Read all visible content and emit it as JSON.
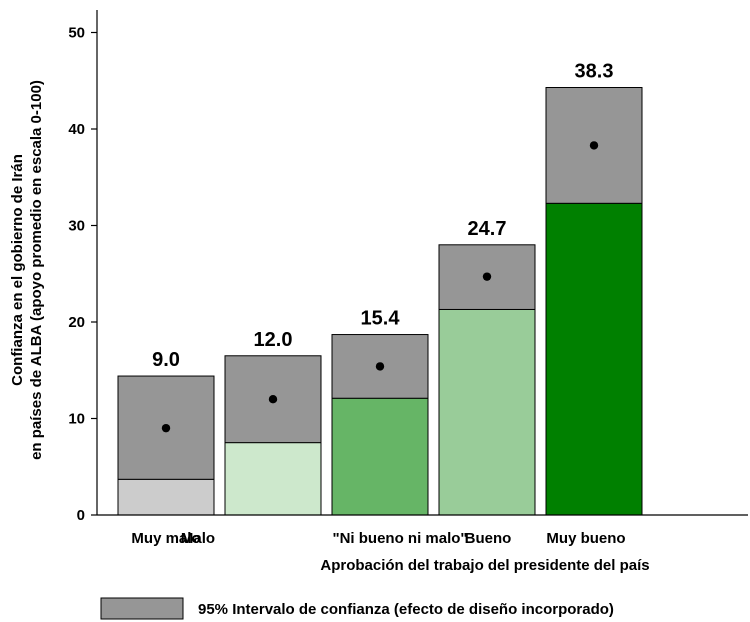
{
  "chart_data": {
    "type": "bar",
    "ylabel_lines": [
      "Confianza en el gobierno de Irán",
      "en  países de ALBA  (apoyo promedio en escala 0-100)"
    ],
    "xlabel": "Aprobación del trabajo del presidente del país",
    "ylim": [
      0,
      52
    ],
    "yticks": [
      "0",
      "10",
      "20",
      "30",
      "40",
      "50"
    ],
    "categories": [
      "Muy malo",
      "Malo",
      "\"Ni bueno ni malo\"",
      "Bueno",
      "Muy bueno"
    ],
    "values": [
      9.0,
      12.0,
      15.4,
      24.7,
      38.3
    ],
    "value_labels": [
      "9.0",
      "12.0",
      "15.4",
      "24.7",
      "38.3"
    ],
    "ci_lower": [
      3.7,
      7.5,
      12.1,
      21.3,
      32.3
    ],
    "ci_upper": [
      14.4,
      16.5,
      18.7,
      28.0,
      44.3
    ],
    "bar_colors": [
      "#cccccc",
      "#cde8cc",
      "#66b566",
      "#99cc99",
      "#008000"
    ],
    "ci_color": "#969696",
    "point_color": "#000000",
    "legend": {
      "label": "95% Intervalo de confianza  (efecto de diseño incorporado)",
      "placement": "bottom"
    }
  }
}
